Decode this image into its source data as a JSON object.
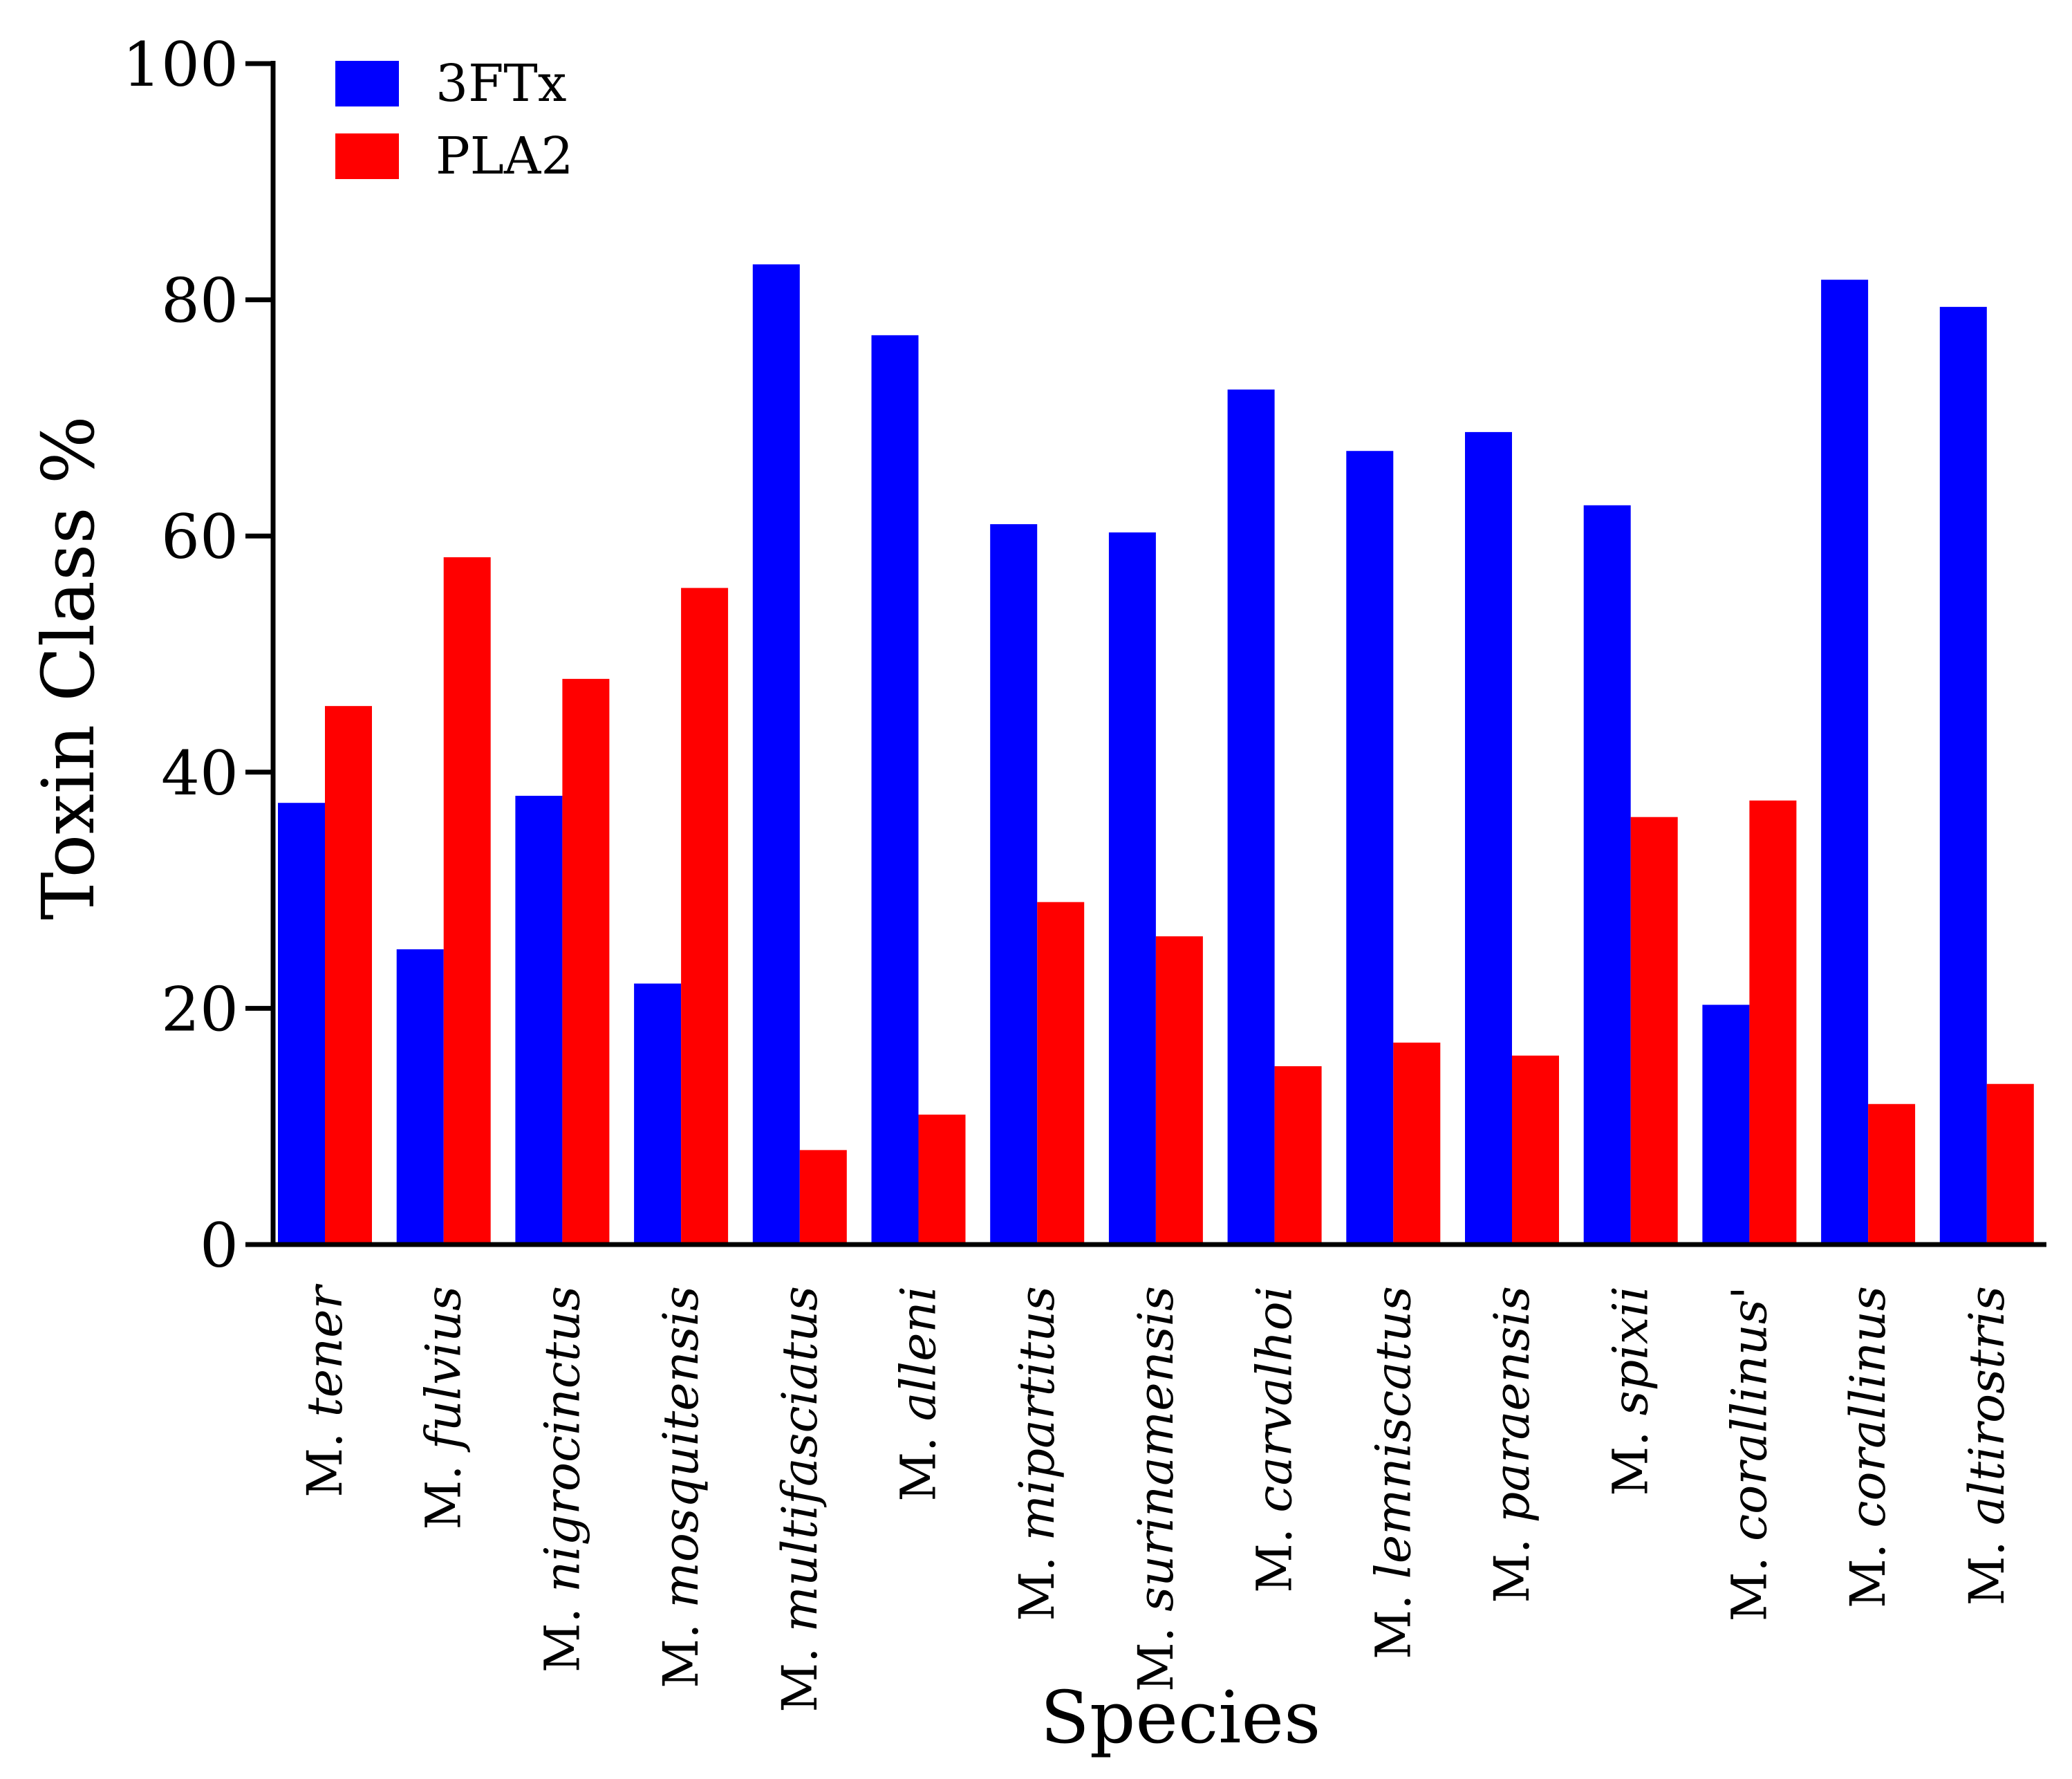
{
  "chart_data": {
    "type": "bar",
    "title": "",
    "xlabel": "Species",
    "ylabel": "Toxin Class %",
    "ylim": [
      0,
      100
    ],
    "yticks": [
      0,
      20,
      40,
      60,
      80,
      100
    ],
    "grid": false,
    "legend_position": "top-left",
    "categories": [
      {
        "prefix": "M.",
        "epithet": "tener",
        "suffix": ""
      },
      {
        "prefix": "M.",
        "epithet": "fulvius",
        "suffix": ""
      },
      {
        "prefix": "M.",
        "epithet": "nigrocinctus",
        "suffix": ""
      },
      {
        "prefix": "M.",
        "epithet": "mosquitensis",
        "suffix": ""
      },
      {
        "prefix": "M.",
        "epithet": "multifasciatus",
        "suffix": ""
      },
      {
        "prefix": "M.",
        "epithet": "alleni",
        "suffix": ""
      },
      {
        "prefix": "M.",
        "epithet": "mipartitus",
        "suffix": ""
      },
      {
        "prefix": "M.",
        "epithet": "surinamensis",
        "suffix": ""
      },
      {
        "prefix": "M.",
        "epithet": "carvalhoi",
        "suffix": ""
      },
      {
        "prefix": "M.",
        "epithet": "lemniscatus",
        "suffix": ""
      },
      {
        "prefix": "M.",
        "epithet": "paraensis",
        "suffix": ""
      },
      {
        "prefix": "M.",
        "epithet": "spixii",
        "suffix": ""
      },
      {
        "prefix": "M.",
        "epithet": "corallinus",
        "suffix": "'"
      },
      {
        "prefix": "M.",
        "epithet": "corallinus",
        "suffix": ""
      },
      {
        "prefix": "M.",
        "epithet": "altirostris",
        "suffix": ""
      }
    ],
    "series": [
      {
        "name": "3FTx",
        "color": "#0000ff",
        "values": [
          37.4,
          25.0,
          38.0,
          22.1,
          83.0,
          77.0,
          61.0,
          60.3,
          72.4,
          67.2,
          68.8,
          62.6,
          20.3,
          81.7,
          79.4
        ]
      },
      {
        "name": "PLA2",
        "color": "#ff0000",
        "values": [
          45.6,
          58.2,
          47.9,
          55.6,
          8.0,
          11.0,
          29.0,
          26.1,
          15.1,
          17.1,
          16.0,
          36.2,
          37.6,
          11.9,
          13.6
        ]
      }
    ]
  }
}
